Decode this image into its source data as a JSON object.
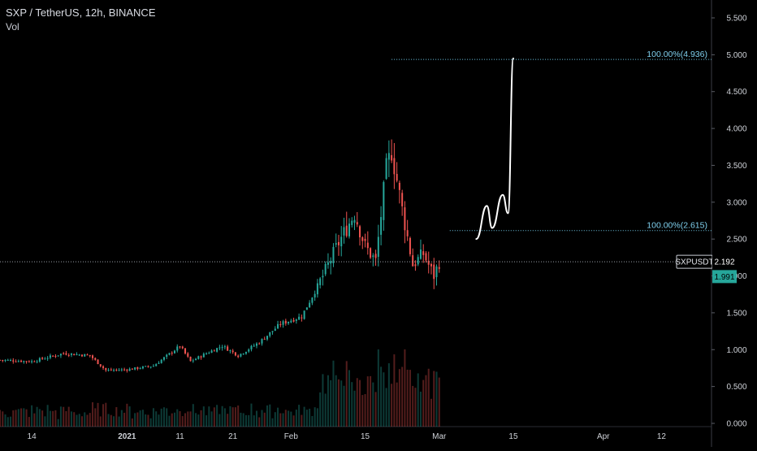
{
  "header": {
    "title": "SXP / TetherUS, 12h, BINANCE",
    "indicator": "Vol"
  },
  "colors": {
    "background": "#000000",
    "up": "#26a69a",
    "down": "#ef5350",
    "fib_line": "#6fc9e8",
    "price_line": "#9aa0a8",
    "drawing": "#ffffff",
    "price_tag_bg": "#26a69a"
  },
  "price_axis": {
    "labels": [
      "5.500",
      "5.000",
      "4.500",
      "4.000",
      "3.500",
      "3.000",
      "2.500",
      "2.000",
      "1.500",
      "1.000",
      "0.500",
      "0.000"
    ],
    "values": [
      5.5,
      5.0,
      4.5,
      4.0,
      3.5,
      3.0,
      2.5,
      2.0,
      1.5,
      1.0,
      0.5,
      0.0
    ]
  },
  "time_axis": {
    "labels": [
      "14",
      "2021",
      "11",
      "21",
      "Feb",
      "15",
      "Mar",
      "15",
      "Apr",
      "12"
    ],
    "bold": [
      false,
      true,
      false,
      false,
      false,
      false,
      false,
      false,
      false,
      false
    ]
  },
  "tags": {
    "symbol": "SXPUSDT",
    "last_price": "2.192",
    "other_price": "1.991"
  },
  "fib_levels": [
    {
      "label": "100.00%(4.936)",
      "value": 4.936
    },
    {
      "label": "100.00%(2.615)",
      "value": 2.615
    }
  ],
  "chart_data": {
    "type": "candlestick",
    "title": "SXP / TetherUS, 12h, BINANCE",
    "ylim": [
      0,
      5.5
    ],
    "last_price": 2.192,
    "x_range": [
      "2020-12-08",
      "2021-04-19"
    ],
    "ohlc_anchors": [
      {
        "date": "2020-12-08",
        "close": 0.86
      },
      {
        "date": "2020-12-14",
        "close": 0.84
      },
      {
        "date": "2020-12-20",
        "close": 0.95
      },
      {
        "date": "2020-12-25",
        "close": 0.92
      },
      {
        "date": "2020-12-28",
        "close": 0.72
      },
      {
        "date": "2021-01-01",
        "close": 0.73
      },
      {
        "date": "2021-01-06",
        "close": 0.78
      },
      {
        "date": "2021-01-11",
        "close": 1.05
      },
      {
        "date": "2021-01-13",
        "close": 0.84
      },
      {
        "date": "2021-01-16",
        "close": 0.95
      },
      {
        "date": "2021-01-19",
        "close": 1.05
      },
      {
        "date": "2021-01-22",
        "close": 0.92
      },
      {
        "date": "2021-01-26",
        "close": 1.1
      },
      {
        "date": "2021-01-30",
        "close": 1.35
      },
      {
        "date": "2021-02-03",
        "close": 1.45
      },
      {
        "date": "2021-02-07",
        "close": 2.0
      },
      {
        "date": "2021-02-10",
        "close": 2.45
      },
      {
        "date": "2021-02-13",
        "close": 2.85
      },
      {
        "date": "2021-02-15",
        "close": 2.4
      },
      {
        "date": "2021-02-17",
        "close": 2.2
      },
      {
        "date": "2021-02-19",
        "close": 3.45
      },
      {
        "date": "2021-02-20",
        "close": 3.7
      },
      {
        "date": "2021-02-22",
        "close": 2.9
      },
      {
        "date": "2021-02-24",
        "close": 2.15
      },
      {
        "date": "2021-02-26",
        "close": 2.3
      },
      {
        "date": "2021-02-28",
        "close": 2.0
      },
      {
        "date": "2021-03-01",
        "close": 2.19
      }
    ],
    "projection_path": [
      {
        "date": "2021-03-08",
        "price": 2.5
      },
      {
        "date": "2021-03-10",
        "price": 2.95
      },
      {
        "date": "2021-03-11",
        "price": 2.65
      },
      {
        "date": "2021-03-13",
        "price": 3.1
      },
      {
        "date": "2021-03-14",
        "price": 2.85
      },
      {
        "date": "2021-03-15",
        "price": 4.95
      }
    ],
    "volume_max_fraction": 0.45
  }
}
